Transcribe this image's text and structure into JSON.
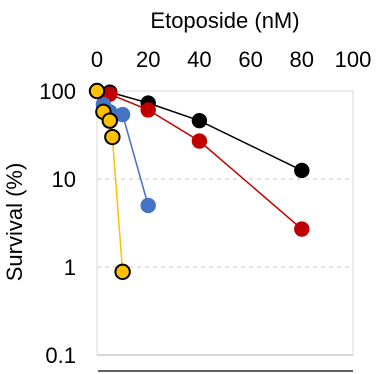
{
  "chart_data": {
    "type": "scatter",
    "title": "",
    "xlabel": "Etoposide (nM)",
    "ylabel": "Survival (%)",
    "x_axis_position": "top",
    "x_ticks": [
      "0",
      "20",
      "40",
      "60",
      "80",
      "100"
    ],
    "y_ticks": [
      "100",
      "10",
      "1",
      "0.1"
    ],
    "xlim": [
      0,
      100
    ],
    "ylim": [
      0.1,
      100
    ],
    "y_scale": "log",
    "grid": "horizontal dashed",
    "series": [
      {
        "color": "#000000",
        "points": [
          {
            "x": 0,
            "y": 100
          },
          {
            "x": 5,
            "y": 97
          },
          {
            "x": 20,
            "y": 73
          },
          {
            "x": 40,
            "y": 46
          },
          {
            "x": 80,
            "y": 12.5
          }
        ]
      },
      {
        "color": "#c00000",
        "points": [
          {
            "x": 0,
            "y": 100
          },
          {
            "x": 5,
            "y": 92
          },
          {
            "x": 20,
            "y": 61
          },
          {
            "x": 40,
            "y": 27
          },
          {
            "x": 80,
            "y": 2.7
          }
        ]
      },
      {
        "color": "#4472c4",
        "points": [
          {
            "x": 0,
            "y": 100
          },
          {
            "x": 2.5,
            "y": 70
          },
          {
            "x": 5,
            "y": 58
          },
          {
            "x": 10,
            "y": 54
          },
          {
            "x": 20,
            "y": 5
          }
        ]
      },
      {
        "color": "#ffc000",
        "points": [
          {
            "x": 0,
            "y": 100
          },
          {
            "x": 2.5,
            "y": 58
          },
          {
            "x": 5,
            "y": 46
          },
          {
            "x": 6,
            "y": 30
          },
          {
            "x": 10,
            "y": 0.88
          }
        ]
      }
    ]
  }
}
